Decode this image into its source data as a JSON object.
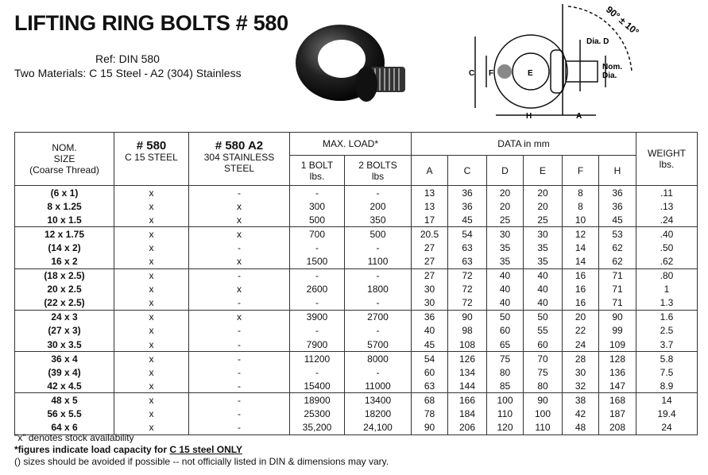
{
  "header": {
    "title": "LIFTING RING BOLTS # 580",
    "ref": "Ref: DIN 580",
    "materials": "Two Materials: C 15 Steel - A2 (304) Stainless"
  },
  "diagram": {
    "angle": "90° ± 10°",
    "labels": {
      "dia_d": "Dia. D",
      "nom": "Nom.",
      "dia": "Dia.",
      "c": "C",
      "f": "F",
      "e": "E",
      "h": "H",
      "a": "A"
    }
  },
  "table": {
    "headers": {
      "size": [
        "NOM.",
        "SIZE",
        "(Coarse Thread)"
      ],
      "c15_title": "# 580",
      "c15_sub": "C 15 STEEL",
      "a2_title": "# 580 A2",
      "a2_sub": [
        "304 STAINLESS",
        "STEEL"
      ],
      "max_load": "MAX. LOAD*",
      "one_bolt": [
        "1 BOLT",
        "lbs."
      ],
      "two_bolts": [
        "2 BOLTS",
        "lbs"
      ],
      "data_mm": "DATA in mm",
      "dims": [
        "A",
        "C",
        "D",
        "E",
        "F",
        "H"
      ],
      "weight": [
        "WEIGHT",
        "lbs."
      ]
    },
    "rows": [
      [
        "(6 x 1)",
        "x",
        "-",
        "-",
        "-",
        "13",
        "36",
        "20",
        "20",
        "8",
        "36",
        ".11"
      ],
      [
        "8 x 1.25",
        "x",
        "x",
        "300",
        "200",
        "13",
        "36",
        "20",
        "20",
        "8",
        "36",
        ".13"
      ],
      [
        "10 x 1.5",
        "x",
        "x",
        "500",
        "350",
        "17",
        "45",
        "25",
        "25",
        "10",
        "45",
        ".24"
      ],
      [
        "12 x 1.75",
        "x",
        "x",
        "700",
        "500",
        "20.5",
        "54",
        "30",
        "30",
        "12",
        "53",
        ".40"
      ],
      [
        "(14 x 2)",
        "x",
        "-",
        "-",
        "-",
        "27",
        "63",
        "35",
        "35",
        "14",
        "62",
        ".50"
      ],
      [
        "16 x 2",
        "x",
        "x",
        "1500",
        "1100",
        "27",
        "63",
        "35",
        "35",
        "14",
        "62",
        ".62"
      ],
      [
        "(18 x 2.5)",
        "x",
        "-",
        "-",
        "-",
        "27",
        "72",
        "40",
        "40",
        "16",
        "71",
        ".80"
      ],
      [
        "20 x 2.5",
        "x",
        "x",
        "2600",
        "1800",
        "30",
        "72",
        "40",
        "40",
        "16",
        "71",
        "1"
      ],
      [
        "(22 x 2.5)",
        "x",
        "-",
        "-",
        "-",
        "30",
        "72",
        "40",
        "40",
        "16",
        "71",
        "1.3"
      ],
      [
        "24 x 3",
        "x",
        "x",
        "3900",
        "2700",
        "36",
        "90",
        "50",
        "50",
        "20",
        "90",
        "1.6"
      ],
      [
        "(27 x 3)",
        "x",
        "-",
        "-",
        "-",
        "40",
        "98",
        "60",
        "55",
        "22",
        "99",
        "2.5"
      ],
      [
        "30 x 3.5",
        "x",
        "-",
        "7900",
        "5700",
        "45",
        "108",
        "65",
        "60",
        "24",
        "109",
        "3.7"
      ],
      [
        "36 x 4",
        "x",
        "-",
        "11200",
        "8000",
        "54",
        "126",
        "75",
        "70",
        "28",
        "128",
        "5.8"
      ],
      [
        "(39 x 4)",
        "x",
        "-",
        "-",
        "-",
        "60",
        "134",
        "80",
        "75",
        "30",
        "136",
        "7.5"
      ],
      [
        "42 x 4.5",
        "x",
        "-",
        "15400",
        "11000",
        "63",
        "144",
        "85",
        "80",
        "32",
        "147",
        "8.9"
      ],
      [
        "48 x 5",
        "x",
        "-",
        "18900",
        "13400",
        "68",
        "166",
        "100",
        "90",
        "38",
        "168",
        "14"
      ],
      [
        "56 x 5.5",
        "x",
        "-",
        "25300",
        "18200",
        "78",
        "184",
        "110",
        "100",
        "42",
        "187",
        "19.4"
      ],
      [
        "64 x 6",
        "x",
        "-",
        "35,200",
        "24,100",
        "90",
        "206",
        "120",
        "110",
        "48",
        "208",
        "24"
      ]
    ]
  },
  "notes": {
    "stock": "\"x\" denotes stock availability",
    "load_prefix": "*figures indicate load capacity for ",
    "load_underlined": "C 15 steel ONLY",
    "avoid": "() sizes should be avoided if possible -- not officially listed in DIN & dimensions may vary."
  }
}
